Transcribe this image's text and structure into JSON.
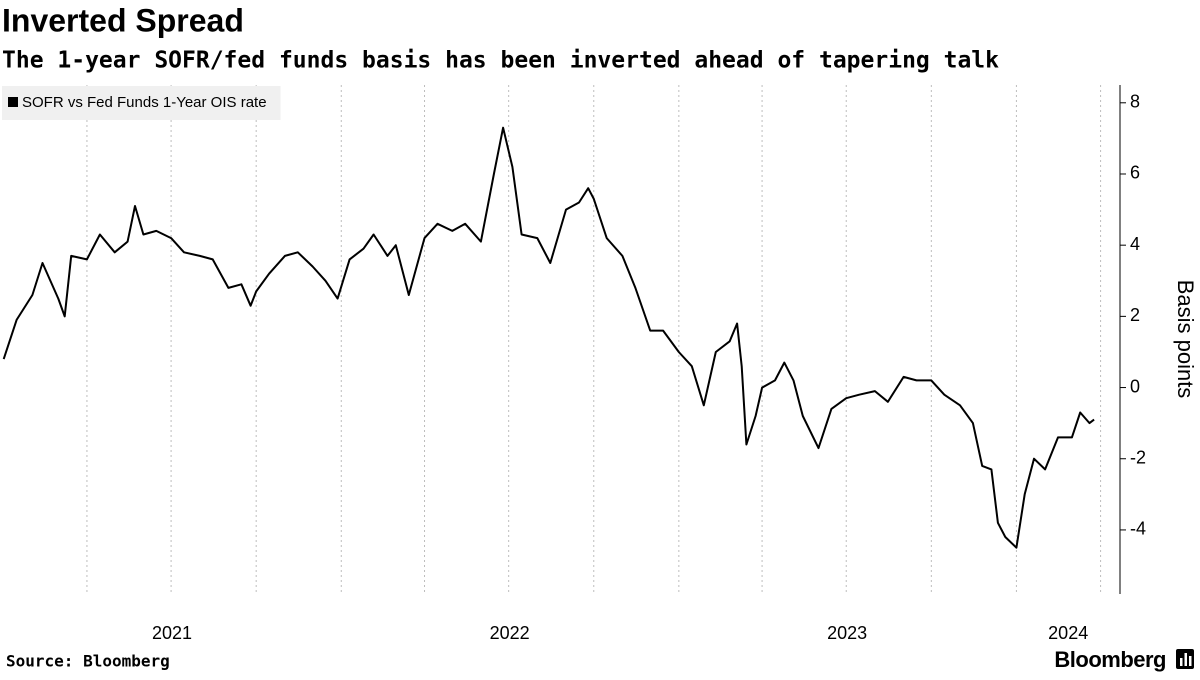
{
  "chart_data": {
    "type": "line",
    "title": "Inverted Spread",
    "subtitle": "The 1-year SOFR/fed funds basis has been inverted ahead of tapering talk",
    "y_label": "Basis points",
    "source": "Source: Bloomberg",
    "brand": "Bloomberg",
    "xlim": [
      "2020-12-28",
      "2024-04-22"
    ],
    "xticks": [
      {
        "value": "2021-07-02",
        "label": "2021"
      },
      {
        "value": "2022-07-02",
        "label": "2022"
      },
      {
        "value": "2023-07-02",
        "label": "2023"
      },
      {
        "value": "2024-02-26",
        "label": "2024"
      }
    ],
    "xgrid": [
      "2021-04-01",
      "2021-07-01",
      "2021-10-01",
      "2022-01-01",
      "2022-04-01",
      "2022-07-01",
      "2022-10-01",
      "2023-01-01",
      "2023-04-01",
      "2023-07-01",
      "2023-10-01",
      "2024-01-01",
      "2024-04-01"
    ],
    "ylim": [
      -5.8,
      8.5
    ],
    "yticks": [
      -4,
      -2,
      0,
      2,
      4,
      6,
      8
    ],
    "legend_position": "upper left",
    "x": [
      "2021-01-01",
      "2021-01-15",
      "2021-02-01",
      "2021-02-12",
      "2021-03-01",
      "2021-03-08",
      "2021-03-15",
      "2021-04-01",
      "2021-04-15",
      "2021-05-01",
      "2021-05-15",
      "2021-05-23",
      "2021-06-01",
      "2021-06-15",
      "2021-07-01",
      "2021-07-15",
      "2021-08-01",
      "2021-08-15",
      "2021-09-01",
      "2021-09-15",
      "2021-09-25",
      "2021-10-01",
      "2021-10-15",
      "2021-11-01",
      "2021-11-15",
      "2021-12-01",
      "2021-12-15",
      "2021-12-28",
      "2022-01-10",
      "2022-01-25",
      "2022-02-05",
      "2022-02-20",
      "2022-03-01",
      "2022-03-15",
      "2022-04-01",
      "2022-04-15",
      "2022-05-01",
      "2022-05-15",
      "2022-06-01",
      "2022-06-15",
      "2022-06-25",
      "2022-07-05",
      "2022-07-15",
      "2022-08-01",
      "2022-08-15",
      "2022-09-01",
      "2022-09-15",
      "2022-09-25",
      "2022-10-01",
      "2022-10-15",
      "2022-11-01",
      "2022-11-15",
      "2022-12-01",
      "2022-12-15",
      "2023-01-01",
      "2023-01-15",
      "2023-01-28",
      "2023-02-10",
      "2023-02-25",
      "2023-03-05",
      "2023-03-10",
      "2023-03-15",
      "2023-03-25",
      "2023-04-01",
      "2023-04-15",
      "2023-04-25",
      "2023-05-05",
      "2023-05-15",
      "2023-06-01",
      "2023-06-15",
      "2023-07-01",
      "2023-07-15",
      "2023-08-01",
      "2023-08-15",
      "2023-09-01",
      "2023-09-15",
      "2023-10-01",
      "2023-10-15",
      "2023-11-01",
      "2023-11-15",
      "2023-11-25",
      "2023-12-05",
      "2023-12-12",
      "2023-12-20",
      "2024-01-01",
      "2024-01-10",
      "2024-01-20",
      "2024-02-01",
      "2024-02-15",
      "2024-03-01",
      "2024-03-10",
      "2024-03-20",
      "2024-03-25"
    ],
    "series": [
      {
        "name": "SOFR vs Fed Funds 1-Year OIS rate",
        "color": "#000000",
        "values": [
          0.8,
          1.9,
          2.6,
          3.5,
          2.5,
          2.0,
          3.7,
          3.6,
          4.3,
          3.8,
          4.1,
          5.1,
          4.3,
          4.4,
          4.2,
          3.8,
          3.7,
          3.6,
          2.8,
          2.9,
          2.3,
          2.7,
          3.2,
          3.7,
          3.8,
          3.4,
          3.0,
          2.5,
          3.6,
          3.9,
          4.3,
          3.7,
          4.0,
          2.6,
          4.2,
          4.6,
          4.4,
          4.6,
          4.1,
          6.0,
          7.3,
          6.2,
          4.3,
          4.2,
          3.5,
          5.0,
          5.2,
          5.6,
          5.3,
          4.2,
          3.7,
          2.8,
          1.6,
          1.6,
          1.0,
          0.6,
          -0.5,
          1.0,
          1.3,
          1.8,
          0.6,
          -1.6,
          -0.8,
          0.0,
          0.2,
          0.7,
          0.2,
          -0.8,
          -1.7,
          -0.6,
          -0.3,
          -0.2,
          -0.1,
          -0.4,
          0.3,
          0.2,
          0.2,
          -0.2,
          -0.5,
          -1.0,
          -2.2,
          -2.3,
          -3.8,
          -4.2,
          -4.5,
          -3.0,
          -2.0,
          -2.3,
          -1.4,
          -1.4,
          -0.7,
          -1.0,
          -0.9
        ]
      }
    ]
  }
}
